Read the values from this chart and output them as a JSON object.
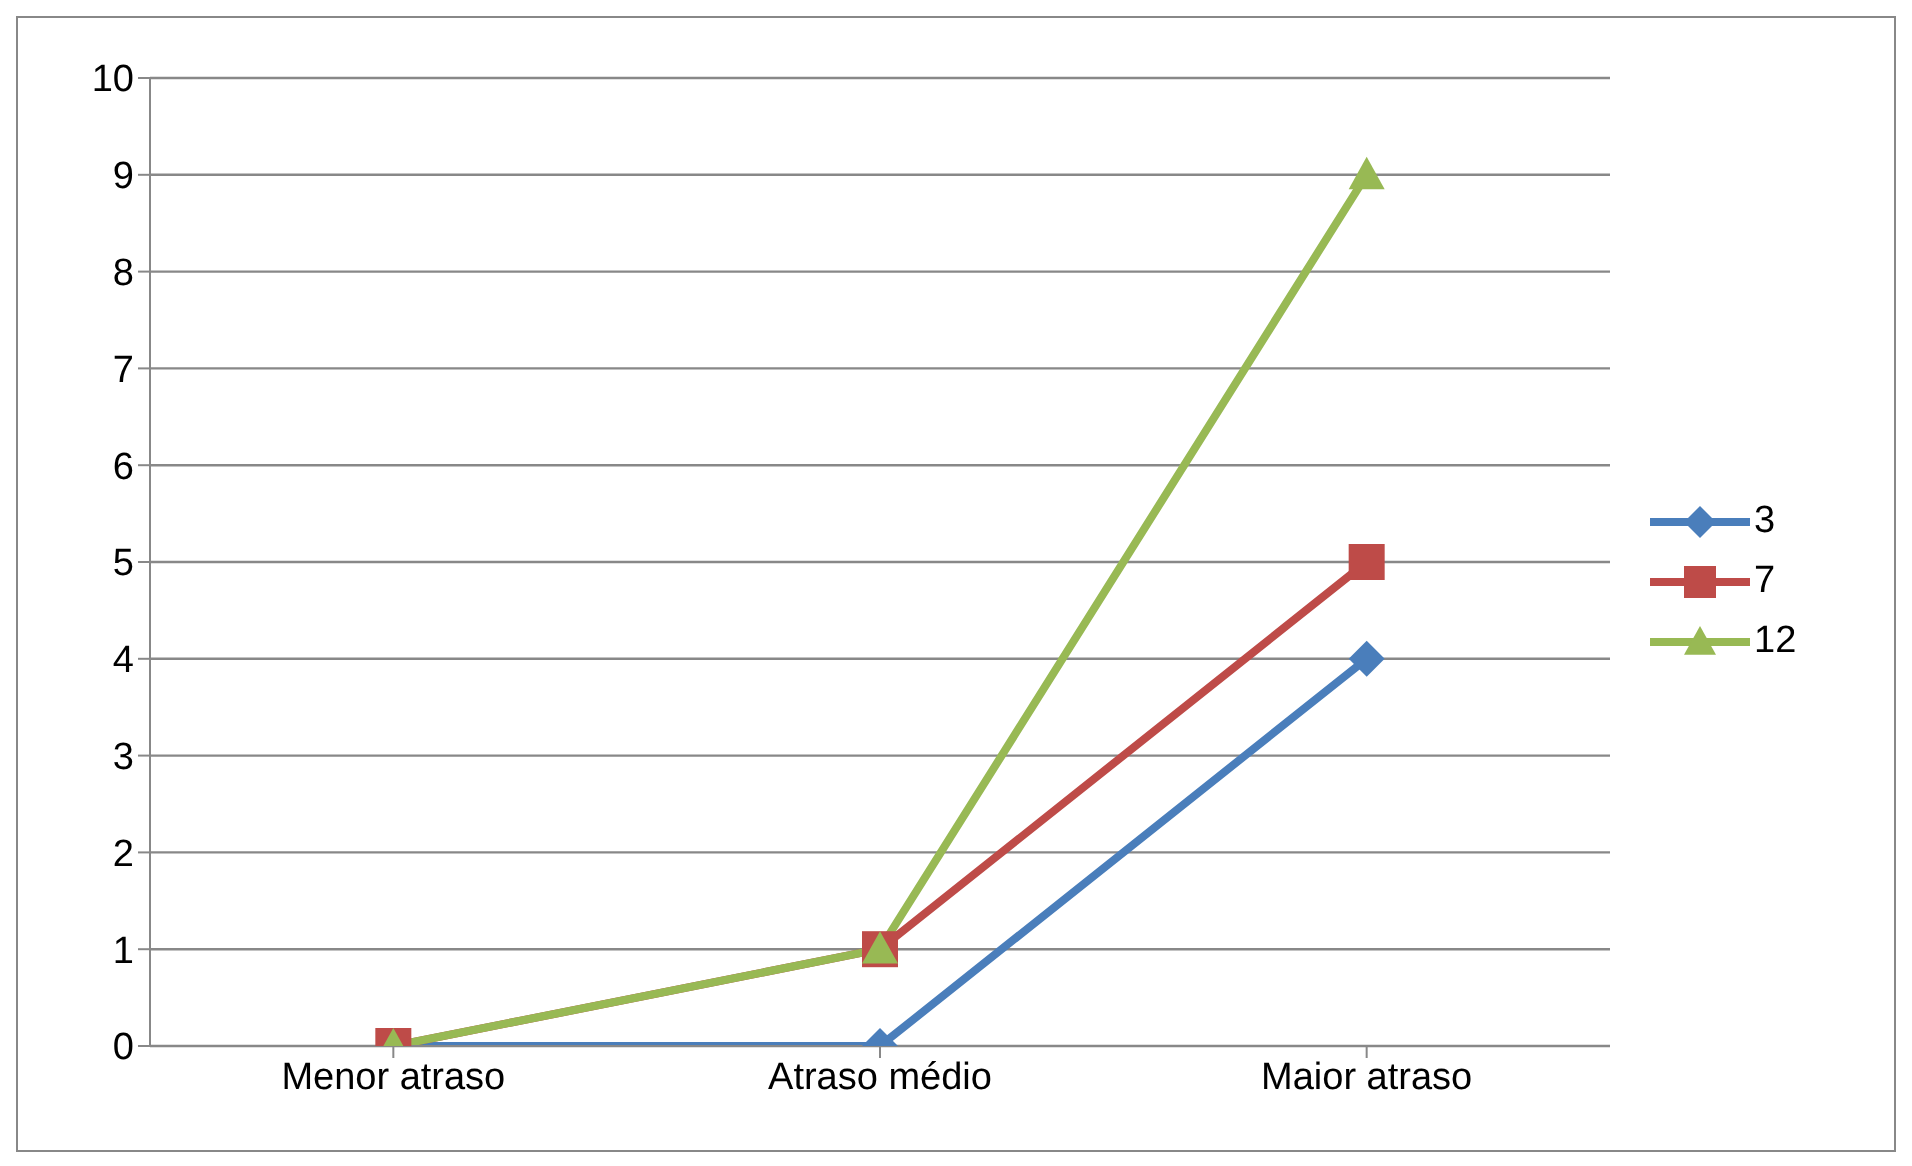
{
  "chart_data": {
    "type": "line",
    "categories": [
      "Menor atraso",
      "Atraso médio",
      "Maior atraso"
    ],
    "series": [
      {
        "name": "3",
        "color": "#4a7ebb",
        "values": [
          0,
          0,
          4
        ],
        "marker": "diamond"
      },
      {
        "name": "7",
        "color": "#be4b48",
        "values": [
          0,
          1,
          5
        ],
        "marker": "square"
      },
      {
        "name": "12",
        "color": "#98b954",
        "values": [
          0,
          1,
          9
        ],
        "marker": "triangle"
      }
    ],
    "ylim": [
      0,
      10
    ],
    "yticks": [
      0,
      1,
      2,
      3,
      4,
      5,
      6,
      7,
      8,
      9,
      10
    ],
    "grid": "y",
    "legend": "right",
    "line_style": "solid"
  }
}
